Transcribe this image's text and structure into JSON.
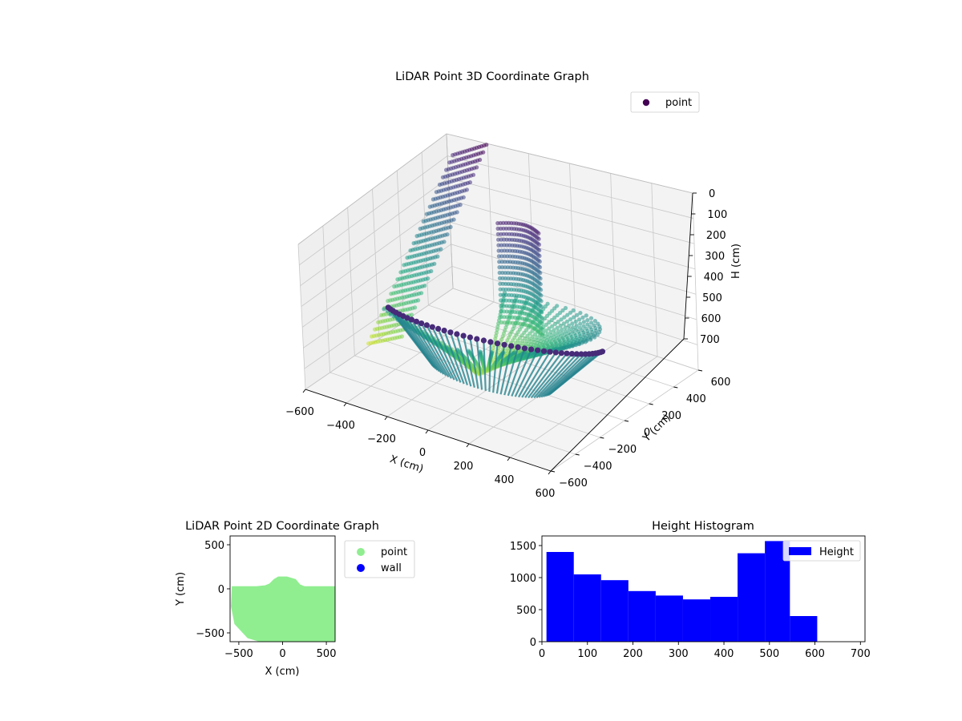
{
  "chart_data": [
    {
      "type": "scatter",
      "title": "LiDAR Point 3D Coordinate Graph",
      "xlabel": "X (cm)",
      "ylabel": "Y (cm)",
      "zlabel": "H (cm)",
      "xlim": [
        -600,
        600
      ],
      "ylim": [
        -600,
        600
      ],
      "zlim": [
        0,
        700
      ],
      "z_inverted": true,
      "x_ticks": [
        "−600",
        "−400",
        "−200",
        "0",
        "200",
        "400",
        "600"
      ],
      "y_ticks": [
        "−600",
        "−400",
        "−200",
        "0",
        "200",
        "400",
        "600"
      ],
      "z_ticks": [
        "0",
        "100",
        "200",
        "300",
        "400",
        "500",
        "600",
        "700"
      ],
      "colormap": "viridis",
      "legend": {
        "label": "point",
        "color": "#440154",
        "placement": "top-right"
      },
      "grid": true
    },
    {
      "type": "scatter",
      "title": "LiDAR Point 2D Coordinate Graph",
      "xlabel": "X (cm)",
      "ylabel": "Y (cm)",
      "xlim": [
        -600,
        600
      ],
      "ylim": [
        -600,
        600
      ],
      "x_ticks": [
        "−500",
        "0",
        "500"
      ],
      "y_ticks": [
        "500",
        "0",
        "−500"
      ],
      "series": [
        {
          "name": "point",
          "color": "#90ee90"
        },
        {
          "name": "wall",
          "color": "#0000ff",
          "values": []
        }
      ],
      "legend_placement": "outside-right",
      "grid": false
    },
    {
      "type": "bar",
      "title": "Height Histogram",
      "bin_edges": [
        10,
        70,
        130,
        190,
        250,
        310,
        370,
        430,
        490,
        545,
        605
      ],
      "values": [
        1400,
        1050,
        960,
        790,
        720,
        660,
        700,
        1380,
        1570,
        400
      ],
      "xlim": [
        0,
        710
      ],
      "ylim": [
        0,
        1650
      ],
      "x_ticks": [
        "0",
        "100",
        "200",
        "300",
        "400",
        "500",
        "600",
        "700"
      ],
      "y_ticks": [
        "0",
        "500",
        "1000",
        "1500"
      ],
      "series": [
        {
          "name": "Height",
          "color": "#0000ff"
        }
      ],
      "legend_placement": "top-right",
      "grid": false
    }
  ]
}
